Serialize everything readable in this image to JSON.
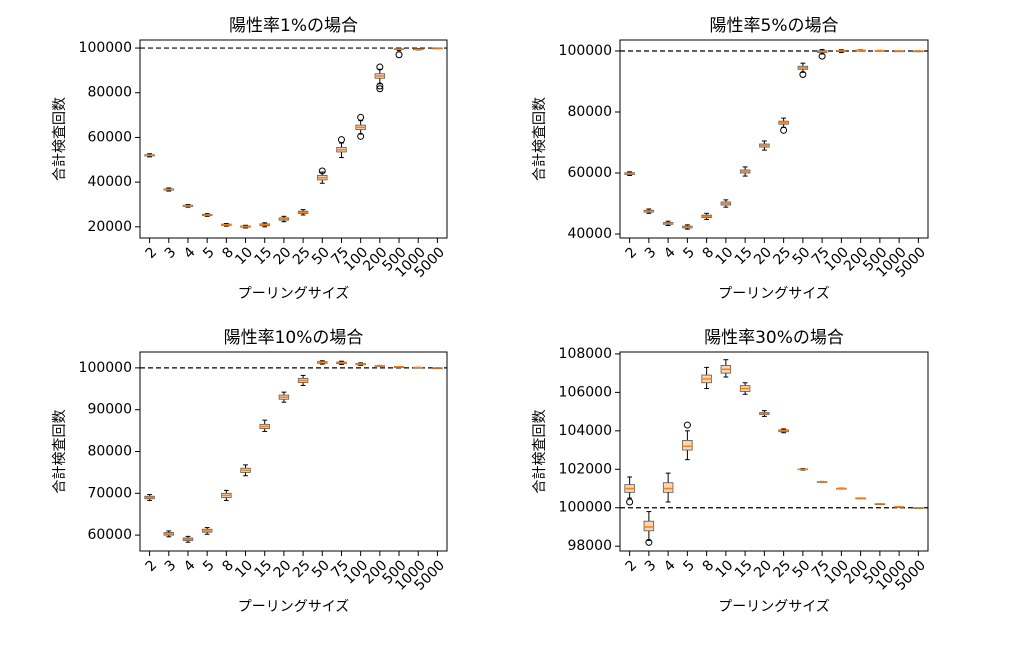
{
  "chart_data": [
    {
      "type": "box",
      "title": "陽性率1%の場合",
      "x_label": "プーリングサイズ",
      "y_label": "合計検査回数",
      "categories": [
        2,
        3,
        4,
        5,
        8,
        10,
        15,
        20,
        25,
        50,
        75,
        100,
        200,
        500,
        1000,
        5000
      ],
      "median": [
        52000,
        36700,
        29400,
        25300,
        20900,
        20100,
        20900,
        23500,
        26500,
        42000,
        54500,
        64500,
        87500,
        99500,
        99500,
        100000
      ],
      "q1": [
        51700,
        36400,
        29100,
        25000,
        20600,
        19800,
        20500,
        23000,
        26000,
        41000,
        53500,
        63500,
        86500,
        99300,
        99400,
        99950
      ],
      "q3": [
        52300,
        37000,
        29700,
        25600,
        21200,
        20400,
        21300,
        24000,
        27000,
        43000,
        55500,
        65500,
        88500,
        99700,
        99600,
        100000
      ],
      "whisker_low": [
        51300,
        36000,
        28800,
        24700,
        20300,
        19500,
        20000,
        22300,
        25300,
        39500,
        51000,
        61500,
        84000,
        98800,
        99200,
        99900
      ],
      "whisker_high": [
        52700,
        37400,
        30000,
        25900,
        21500,
        20700,
        21800,
        24700,
        27700,
        44500,
        57500,
        67500,
        90500,
        100000,
        99800,
        100000
      ],
      "outliers": [
        [],
        [],
        [],
        [],
        [],
        [],
        [],
        [],
        [],
        [
          45000
        ],
        [
          59000
        ],
        [
          60500,
          69000
        ],
        [
          81800,
          83000,
          91500
        ],
        [
          97000
        ],
        [],
        []
      ],
      "hline": 100000,
      "ylim": [
        15000,
        103600
      ],
      "yticks": [
        20000,
        40000,
        60000,
        80000,
        100000
      ],
      "box_color": "#fbd5b5",
      "median_color": "#ff7f0e"
    },
    {
      "type": "box",
      "title": "陽性率5%の場合",
      "x_label": "プーリングサイズ",
      "y_label": "合計検査回数",
      "categories": [
        2,
        3,
        4,
        5,
        8,
        10,
        15,
        20,
        25,
        50,
        75,
        100,
        200,
        500,
        1000,
        5000
      ],
      "median": [
        59800,
        47500,
        43500,
        42300,
        45800,
        50000,
        60500,
        69000,
        76500,
        94500,
        99800,
        100000,
        100200,
        100100,
        100000,
        100000
      ],
      "q1": [
        59500,
        47200,
        43200,
        42000,
        45400,
        49500,
        60000,
        68500,
        76000,
        94000,
        99500,
        99800,
        100100,
        100050,
        99980,
        99995
      ],
      "q3": [
        60100,
        47800,
        43800,
        42600,
        46200,
        50500,
        61000,
        69500,
        77000,
        95000,
        100100,
        100200,
        100300,
        100150,
        100020,
        100000
      ],
      "whisker_low": [
        59200,
        46800,
        42800,
        41600,
        44800,
        48800,
        59000,
        67500,
        75000,
        93000,
        99000,
        99500,
        100000,
        100000,
        99950,
        99990
      ],
      "whisker_high": [
        60400,
        48200,
        44200,
        43000,
        46800,
        51200,
        62000,
        70500,
        78000,
        96000,
        100500,
        100400,
        100400,
        100200,
        100050,
        100000
      ],
      "outliers": [
        [],
        [],
        [],
        [],
        [],
        [],
        [],
        [],
        [
          74000
        ],
        [
          92300
        ],
        [
          98300
        ],
        [],
        [],
        [],
        [],
        []
      ],
      "hline": 100000,
      "ylim": [
        38700,
        103600
      ],
      "yticks": [
        40000,
        60000,
        80000,
        100000
      ],
      "box_color": "#fbd5b5",
      "median_color": "#ff7f0e"
    },
    {
      "type": "box",
      "title": "陽性率10%の場合",
      "x_label": "プーリングサイズ",
      "y_label": "合計検査回数",
      "categories": [
        2,
        3,
        4,
        5,
        8,
        10,
        15,
        20,
        25,
        50,
        75,
        100,
        200,
        500,
        1000,
        5000
      ],
      "median": [
        69000,
        60300,
        59000,
        61000,
        69500,
        75500,
        86000,
        93000,
        97000,
        101300,
        101200,
        100900,
        100500,
        100250,
        100100,
        100000
      ],
      "q1": [
        68700,
        60000,
        58700,
        60700,
        69000,
        75000,
        85500,
        92500,
        96500,
        101100,
        101000,
        100750,
        100450,
        100220,
        100090,
        99998
      ],
      "q3": [
        69300,
        60600,
        59300,
        61400,
        70000,
        76000,
        86500,
        93500,
        97500,
        101500,
        101400,
        101050,
        100550,
        100280,
        100110,
        100000
      ],
      "whisker_low": [
        68300,
        59600,
        58300,
        60200,
        68300,
        74200,
        84800,
        91800,
        95800,
        100900,
        100800,
        100600,
        100400,
        100200,
        100080,
        99995
      ],
      "whisker_high": [
        69700,
        61000,
        59700,
        61800,
        70700,
        76800,
        87500,
        94200,
        98200,
        101700,
        101600,
        101200,
        100600,
        100300,
        100120,
        100000
      ],
      "outliers": [
        [],
        [],
        [],
        [],
        [],
        [],
        [],
        [],
        [],
        [],
        [],
        [],
        [],
        [],
        [],
        []
      ],
      "hline": 100000,
      "ylim": [
        56200,
        103800
      ],
      "yticks": [
        60000,
        70000,
        80000,
        90000,
        100000
      ],
      "box_color": "#fbd5b5",
      "median_color": "#ff7f0e"
    },
    {
      "type": "box",
      "title": "陽性率30%の場合",
      "x_label": "プーリングサイズ",
      "y_label": "合計検査回数",
      "categories": [
        2,
        3,
        4,
        5,
        8,
        10,
        15,
        20,
        25,
        50,
        75,
        100,
        200,
        500,
        1000,
        5000
      ],
      "median": [
        101000,
        99000,
        101000,
        103200,
        106700,
        107200,
        106200,
        104900,
        104000,
        102000,
        101350,
        101000,
        100500,
        100200,
        100050,
        100000
      ],
      "q1": [
        100800,
        98800,
        100800,
        103000,
        106500,
        107000,
        106050,
        104850,
        103950,
        101980,
        101340,
        100990,
        100495,
        100195,
        100048,
        99999
      ],
      "q3": [
        101200,
        99300,
        101300,
        103500,
        106900,
        107400,
        106350,
        104950,
        104050,
        102020,
        101360,
        101010,
        100505,
        100205,
        100052,
        100001
      ],
      "whisker_low": [
        100500,
        98300,
        100300,
        102500,
        106200,
        106800,
        105900,
        104750,
        103900,
        101960,
        101330,
        100980,
        100490,
        100190,
        100045,
        99998
      ],
      "whisker_high": [
        101600,
        99800,
        101800,
        104000,
        107300,
        107700,
        106500,
        105050,
        104100,
        102040,
        101370,
        101020,
        100510,
        100210,
        100055,
        100002
      ],
      "outliers": [
        [
          100300
        ],
        [
          98200
        ],
        [],
        [
          104300
        ],
        [],
        [],
        [],
        [],
        [],
        [],
        [],
        [],
        [],
        [],
        [],
        []
      ],
      "hline": 100000,
      "ylim": [
        97750,
        108100
      ],
      "yticks": [
        98000,
        100000,
        102000,
        104000,
        106000,
        108000
      ],
      "box_color": "#fbd5b5",
      "median_color": "#ff7f0e"
    }
  ]
}
